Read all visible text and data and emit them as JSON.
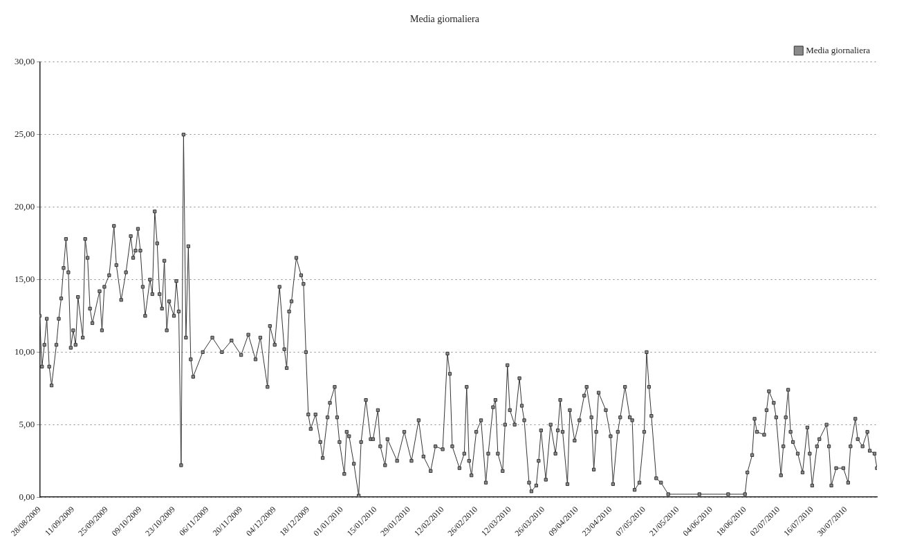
{
  "chart_data": {
    "type": "line",
    "title": "Media giornaliera",
    "legend": "top right",
    "grid": "y",
    "marker": "square",
    "line_style": "solid",
    "xlim": [
      "2009-08-28",
      "2010-08-12"
    ],
    "xticks": [
      {
        "value": "2009-08-28",
        "label": "28/08/2009"
      },
      {
        "value": "2009-09-11",
        "label": "11/09/2009"
      },
      {
        "value": "2009-09-25",
        "label": "25/09/2009"
      },
      {
        "value": "2009-10-09",
        "label": "09/10/2009"
      },
      {
        "value": "2009-10-23",
        "label": "23/10/2009"
      },
      {
        "value": "2009-11-06",
        "label": "06/11/2009"
      },
      {
        "value": "2009-11-20",
        "label": "20/11/2009"
      },
      {
        "value": "2009-12-04",
        "label": "04/12/2009"
      },
      {
        "value": "2009-12-18",
        "label": "18/12/2009"
      },
      {
        "value": "2010-01-01",
        "label": "01/01/2010"
      },
      {
        "value": "2010-01-15",
        "label": "15/01/2010"
      },
      {
        "value": "2010-01-29",
        "label": "29/01/2010"
      },
      {
        "value": "2010-02-12",
        "label": "12/02/2010"
      },
      {
        "value": "2010-02-26",
        "label": "26/02/2010"
      },
      {
        "value": "2010-03-12",
        "label": "12/03/2010"
      },
      {
        "value": "2010-03-26",
        "label": "26/03/2010"
      },
      {
        "value": "2010-04-09",
        "label": "09/04/2010"
      },
      {
        "value": "2010-04-23",
        "label": "23/04/2010"
      },
      {
        "value": "2010-05-07",
        "label": "07/05/2010"
      },
      {
        "value": "2010-05-21",
        "label": "21/05/2010"
      },
      {
        "value": "2010-06-04",
        "label": "04/06/2010"
      },
      {
        "value": "2010-06-18",
        "label": "18/06/2010"
      },
      {
        "value": "2010-07-02",
        "label": "02/07/2010"
      },
      {
        "value": "2010-07-16",
        "label": "16/07/2010"
      },
      {
        "value": "2010-07-30",
        "label": "30/07/2010"
      }
    ],
    "ylim": [
      0,
      30
    ],
    "yticks": [
      {
        "value": 0,
        "label": "0,00"
      },
      {
        "value": 5,
        "label": "5,00"
      },
      {
        "value": 10,
        "label": "10,00"
      },
      {
        "value": 15,
        "label": "15,00"
      },
      {
        "value": 20,
        "label": "20,00"
      },
      {
        "value": 25,
        "label": "25,00"
      },
      {
        "value": 30,
        "label": "30,00"
      }
    ],
    "x": [
      "2009-08-28",
      "2009-08-29",
      "2009-08-30",
      "2009-08-31",
      "2009-09-01",
      "2009-09-02",
      "2009-09-04",
      "2009-09-05",
      "2009-09-06",
      "2009-09-07",
      "2009-09-08",
      "2009-09-09",
      "2009-09-10",
      "2009-09-11",
      "2009-09-12",
      "2009-09-13",
      "2009-09-15",
      "2009-09-16",
      "2009-09-17",
      "2009-09-18",
      "2009-09-19",
      "2009-09-22",
      "2009-09-23",
      "2009-09-24",
      "2009-09-26",
      "2009-09-28",
      "2009-09-29",
      "2009-10-01",
      "2009-10-03",
      "2009-10-05",
      "2009-10-06",
      "2009-10-07",
      "2009-10-08",
      "2009-10-09",
      "2009-10-10",
      "2009-10-11",
      "2009-10-13",
      "2009-10-14",
      "2009-10-15",
      "2009-10-16",
      "2009-10-17",
      "2009-10-18",
      "2009-10-19",
      "2009-10-20",
      "2009-10-21",
      "2009-10-23",
      "2009-10-24",
      "2009-10-25",
      "2009-10-26",
      "2009-10-27",
      "2009-10-28",
      "2009-10-29",
      "2009-10-30",
      "2009-10-31",
      "2009-11-04",
      "2009-11-08",
      "2009-11-12",
      "2009-11-16",
      "2009-11-20",
      "2009-11-23",
      "2009-11-26",
      "2009-11-28",
      "2009-12-01",
      "2009-12-02",
      "2009-12-04",
      "2009-12-06",
      "2009-12-08",
      "2009-12-09",
      "2009-12-10",
      "2009-12-11",
      "2009-12-13",
      "2009-12-15",
      "2009-12-16",
      "2009-12-17",
      "2009-12-18",
      "2009-12-19",
      "2009-12-21",
      "2009-12-23",
      "2009-12-24",
      "2009-12-26",
      "2009-12-27",
      "2009-12-29",
      "2009-12-30",
      "2009-12-31",
      "2010-01-02",
      "2010-01-03",
      "2010-01-04",
      "2010-01-06",
      "2010-01-08",
      "2010-01-09",
      "2010-01-11",
      "2010-01-13",
      "2010-01-14",
      "2010-01-16",
      "2010-01-17",
      "2010-01-19",
      "2010-01-20",
      "2010-01-24",
      "2010-01-27",
      "2010-01-30",
      "2010-02-02",
      "2010-02-04",
      "2010-02-07",
      "2010-02-09",
      "2010-02-12",
      "2010-02-14",
      "2010-02-15",
      "2010-02-16",
      "2010-02-19",
      "2010-02-21",
      "2010-02-22",
      "2010-02-23",
      "2010-02-24",
      "2010-02-26",
      "2010-02-28",
      "2010-03-02",
      "2010-03-03",
      "2010-03-05",
      "2010-03-06",
      "2010-03-07",
      "2010-03-09",
      "2010-03-10",
      "2010-03-11",
      "2010-03-12",
      "2010-03-14",
      "2010-03-16",
      "2010-03-17",
      "2010-03-18",
      "2010-03-20",
      "2010-03-21",
      "2010-03-23",
      "2010-03-24",
      "2010-03-25",
      "2010-03-27",
      "2010-03-29",
      "2010-03-31",
      "2010-04-01",
      "2010-04-02",
      "2010-04-03",
      "2010-04-05",
      "2010-04-06",
      "2010-04-08",
      "2010-04-10",
      "2010-04-12",
      "2010-04-13",
      "2010-04-15",
      "2010-04-16",
      "2010-04-17",
      "2010-04-18",
      "2010-04-21",
      "2010-04-23",
      "2010-04-24",
      "2010-04-26",
      "2010-04-27",
      "2010-04-29",
      "2010-05-01",
      "2010-05-02",
      "2010-05-03",
      "2010-05-05",
      "2010-05-07",
      "2010-05-08",
      "2010-05-09",
      "2010-05-10",
      "2010-05-12",
      "2010-05-14",
      "2010-05-17",
      "2010-05-30",
      "2010-06-11",
      "2010-06-18",
      "2010-06-19",
      "2010-06-21",
      "2010-06-22",
      "2010-06-23",
      "2010-06-26",
      "2010-06-27",
      "2010-06-28",
      "2010-06-30",
      "2010-07-01",
      "2010-07-03",
      "2010-07-04",
      "2010-07-05",
      "2010-07-06",
      "2010-07-07",
      "2010-07-08",
      "2010-07-10",
      "2010-07-12",
      "2010-07-14",
      "2010-07-15",
      "2010-07-16",
      "2010-07-18",
      "2010-07-19",
      "2010-07-22",
      "2010-07-23",
      "2010-07-24",
      "2010-07-26",
      "2010-07-29",
      "2010-07-31",
      "2010-08-01",
      "2010-08-03",
      "2010-08-04",
      "2010-08-06",
      "2010-08-08",
      "2010-08-09",
      "2010-08-11",
      "2010-08-12"
    ],
    "series": [
      {
        "name": "Media giornaliera",
        "color": "#333333",
        "values": [
          12.5,
          9.0,
          10.5,
          12.3,
          9.0,
          7.7,
          10.5,
          12.3,
          13.7,
          15.8,
          17.8,
          15.5,
          10.3,
          11.5,
          10.5,
          13.8,
          11.0,
          17.8,
          16.5,
          13.0,
          12.0,
          14.2,
          11.5,
          14.5,
          15.3,
          18.7,
          16.0,
          13.6,
          15.5,
          18.0,
          16.5,
          17.0,
          18.5,
          17.0,
          14.5,
          12.5,
          15.0,
          14.0,
          19.7,
          17.5,
          14.0,
          13.0,
          16.3,
          11.5,
          13.5,
          12.5,
          14.9,
          12.8,
          2.2,
          25.0,
          11.0,
          17.3,
          9.5,
          8.3,
          10.0,
          11.0,
          10.0,
          10.8,
          9.8,
          11.2,
          9.5,
          11.0,
          7.6,
          11.8,
          10.5,
          14.5,
          10.2,
          8.9,
          12.8,
          13.5,
          16.5,
          15.3,
          14.7,
          10.0,
          5.7,
          4.7,
          5.7,
          3.8,
          2.7,
          5.5,
          6.5,
          7.6,
          5.5,
          3.8,
          1.6,
          4.5,
          4.2,
          2.3,
          0.1,
          3.8,
          6.7,
          4.0,
          4.0,
          6.0,
          3.5,
          2.2,
          4.0,
          2.5,
          4.5,
          2.5,
          5.3,
          2.8,
          1.8,
          3.5,
          3.3,
          9.9,
          8.5,
          3.5,
          2.0,
          3.0,
          7.6,
          2.5,
          1.5,
          4.5,
          5.3,
          1.0,
          3.0,
          6.2,
          6.7,
          3.0,
          1.8,
          5.0,
          9.1,
          6.0,
          5.0,
          8.2,
          6.3,
          5.3,
          1.0,
          0.4,
          0.8,
          2.5,
          4.6,
          1.2,
          5.0,
          3.0,
          4.6,
          6.7,
          4.5,
          0.9,
          6.0,
          3.9,
          5.3,
          7.0,
          7.6,
          5.5,
          1.9,
          4.5,
          7.2,
          6.0,
          4.2,
          0.9,
          4.5,
          5.5,
          7.6,
          5.5,
          5.3,
          0.5,
          1.0,
          4.5,
          10.0,
          7.6,
          5.6,
          1.3,
          1.0,
          0.2,
          0.2,
          0.2,
          0.2,
          1.7,
          2.9,
          5.4,
          4.5,
          4.3,
          6.0,
          7.3,
          6.5,
          5.5,
          1.5,
          3.5,
          5.5,
          7.4,
          4.5,
          3.8,
          3.0,
          1.7,
          4.8,
          3.0,
          0.8,
          3.5,
          4.0,
          5.0,
          3.5,
          0.8,
          2.0,
          2.0,
          1.0,
          3.5,
          5.4,
          4.0,
          3.5,
          4.5,
          3.2,
          3.0,
          2.0
        ]
      }
    ]
  }
}
